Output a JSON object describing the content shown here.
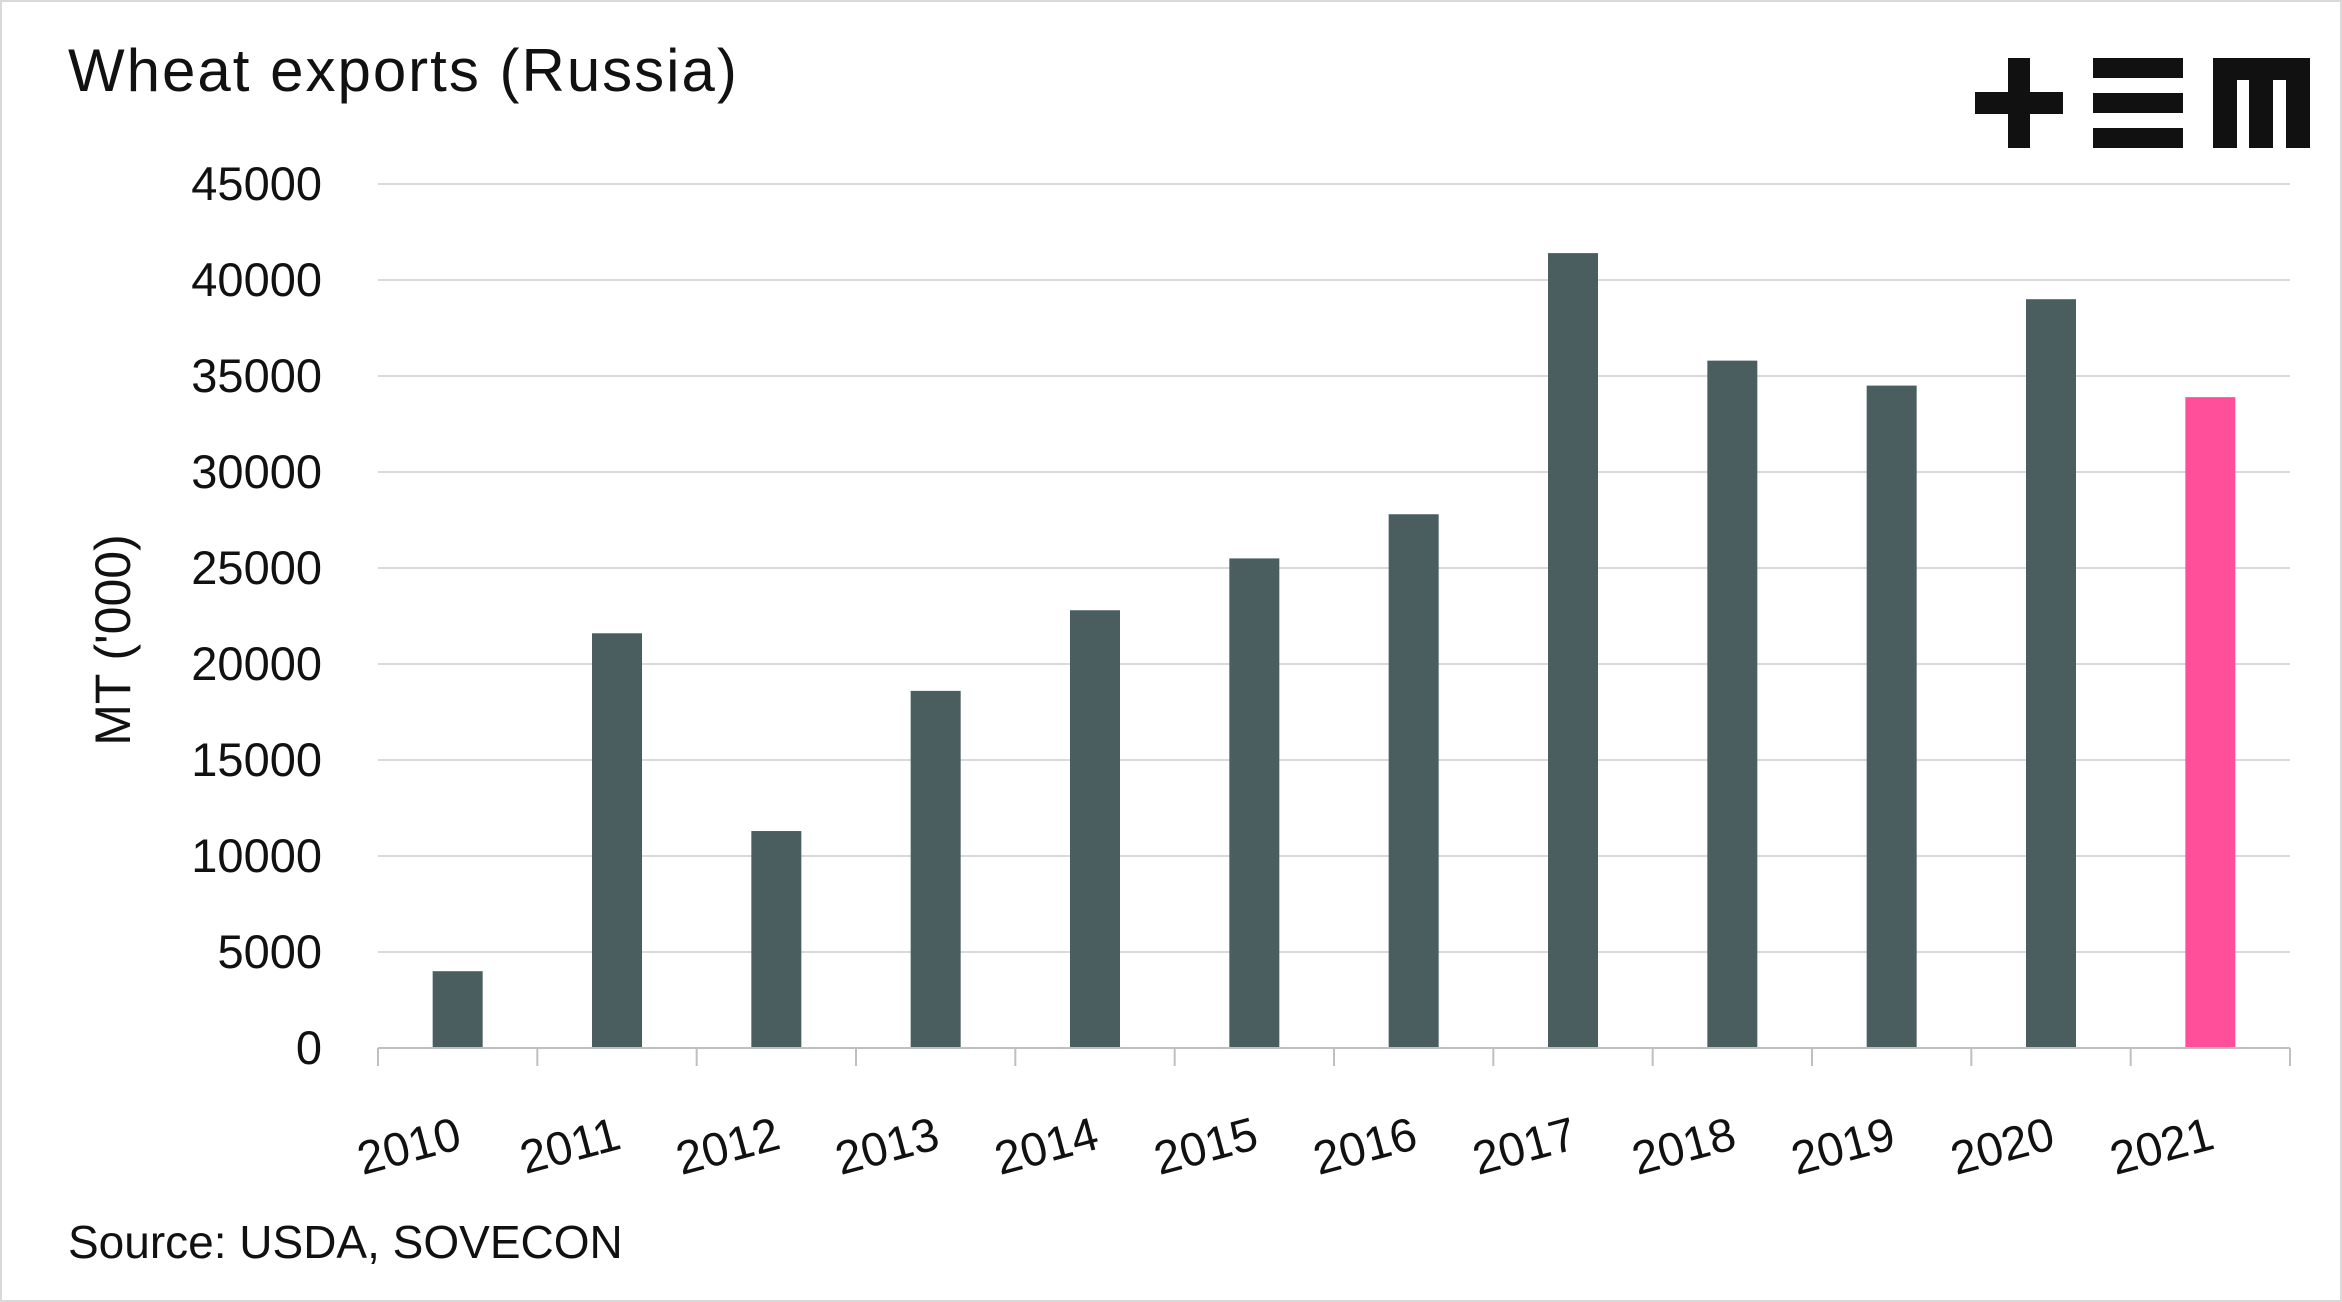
{
  "title": "Wheat exports (Russia)",
  "source": "Source: USDA, SOVECON",
  "logo": {
    "name": "+EM logo",
    "color": "#111111"
  },
  "chart_data": {
    "type": "bar",
    "title": "Wheat exports (Russia)",
    "xlabel": "",
    "ylabel": "MT ('000)",
    "ylim": [
      0,
      45000
    ],
    "yticks": [
      0,
      5000,
      10000,
      15000,
      20000,
      25000,
      30000,
      35000,
      40000,
      45000
    ],
    "grid": true,
    "legend": "none",
    "categories": [
      "2010",
      "2011",
      "2012",
      "2013",
      "2014",
      "2015",
      "2016",
      "2017",
      "2018",
      "2019",
      "2020",
      "2021"
    ],
    "values": [
      4000,
      21600,
      11300,
      18600,
      22800,
      25500,
      27800,
      41400,
      35800,
      34500,
      39000,
      33900
    ],
    "colors": {
      "default": "#4a5e60",
      "highlight": "#ff4f9b",
      "grid": "#d9d9d9",
      "axis": "#bfbfbf"
    },
    "highlight_index": 11
  }
}
